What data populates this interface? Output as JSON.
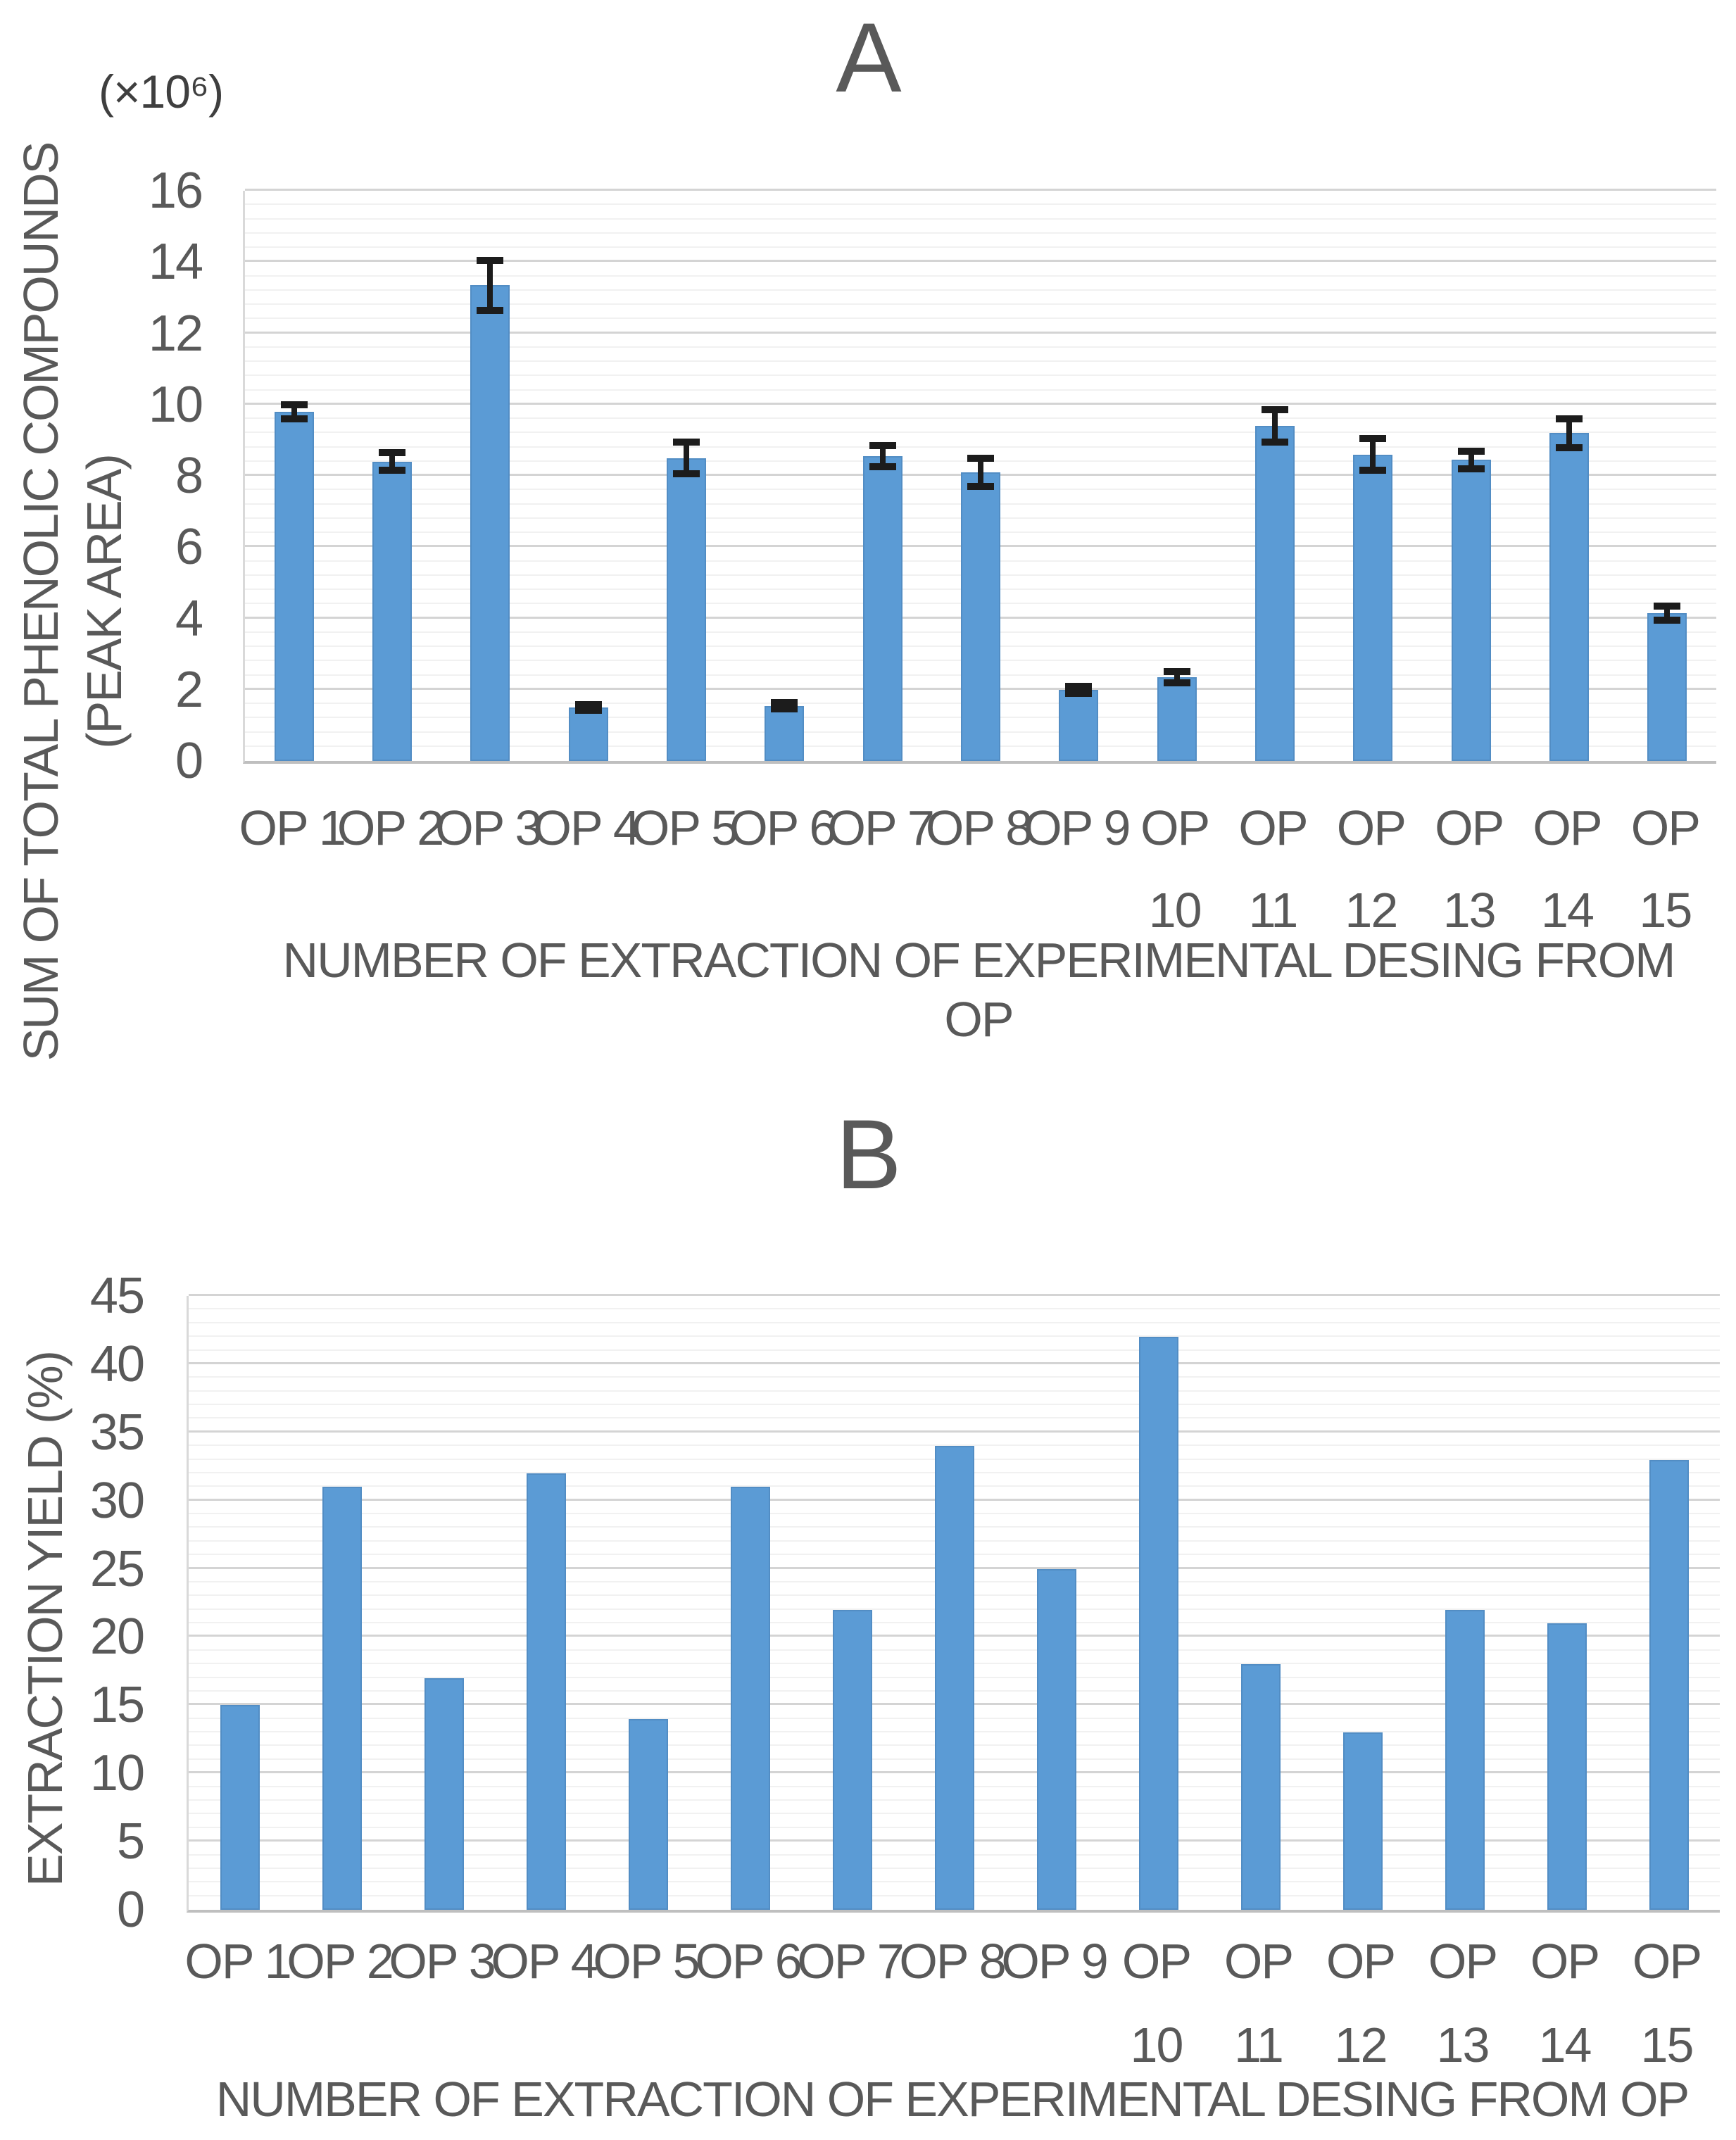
{
  "panels": [
    {
      "title": "A",
      "y_unit": "(×10⁶)",
      "y_label_line1": "SUM OF TOTAL PHENOLIC COMPOUNDS",
      "y_label_line2": "(PEAK AREA)",
      "x_title": "NUMBER OF EXTRACTION OF EXPERIMENTAL DESING FROM OP"
    },
    {
      "title": "B",
      "y_label_line1": "EXTRACTION YIELD (%)",
      "x_title": "NUMBER OF EXTRACTION OF EXPERIMENTAL DESING FROM OP"
    }
  ],
  "colors": {
    "bar_fill": "#5B9BD5",
    "bar_edge": "#3E6E9E",
    "error_bar": "#1C1C1C",
    "grid_major": "#D4D4D4",
    "grid_minor": "#F1F1F1",
    "axis_line": "#BFBFBF",
    "text": "#595959"
  },
  "chart_data": [
    {
      "type": "bar",
      "panel": "A",
      "title": "A",
      "categories": [
        "OP 1",
        "OP 2",
        "OP 3",
        "OP 4",
        "OP 5",
        "OP 6",
        "OP 7",
        "OP 8",
        "OP 9",
        "OP 10",
        "OP 11",
        "OP 12",
        "OP 13",
        "OP 14",
        "OP 15"
      ],
      "values": [
        9.8,
        8.4,
        13.35,
        1.5,
        8.5,
        1.55,
        8.55,
        8.1,
        2.0,
        2.35,
        9.4,
        8.6,
        8.45,
        9.2,
        4.15
      ],
      "error_bars": [
        0.2,
        0.25,
        0.7,
        0.08,
        0.45,
        0.08,
        0.3,
        0.4,
        0.1,
        0.15,
        0.45,
        0.45,
        0.25,
        0.4,
        0.2
      ],
      "xlabel": "NUMBER OF EXTRACTION OF EXPERIMENTAL DESING FROM OP",
      "ylabel": "SUM OF TOTAL PHENOLIC COMPOUNDS (PEAK AREA)",
      "y_unit_multiplier": "(×10⁶)",
      "ylim": [
        0,
        16
      ],
      "ytick_step": 2,
      "minor_step": 0.4,
      "grid": true,
      "legend": false,
      "bar_color": "#5B9BD5"
    },
    {
      "type": "bar",
      "panel": "B",
      "title": "B",
      "categories": [
        "OP 1",
        "OP 2",
        "OP 3",
        "OP 4",
        "OP 5",
        "OP 6",
        "OP 7",
        "OP 8",
        "OP 9",
        "OP 10",
        "OP 11",
        "OP 12",
        "OP 13",
        "OP 14",
        "OP 15"
      ],
      "values": [
        15,
        31,
        17,
        32,
        14,
        31,
        22,
        34,
        25,
        42,
        18,
        13,
        22,
        21,
        33
      ],
      "xlabel": "NUMBER OF EXTRACTION OF EXPERIMENTAL DESING FROM OP",
      "ylabel": "EXTRACTION YIELD (%)",
      "ylim": [
        0,
        45
      ],
      "ytick_step": 5,
      "minor_step": 1,
      "grid": true,
      "legend": false,
      "bar_color": "#5B9BD5"
    }
  ]
}
